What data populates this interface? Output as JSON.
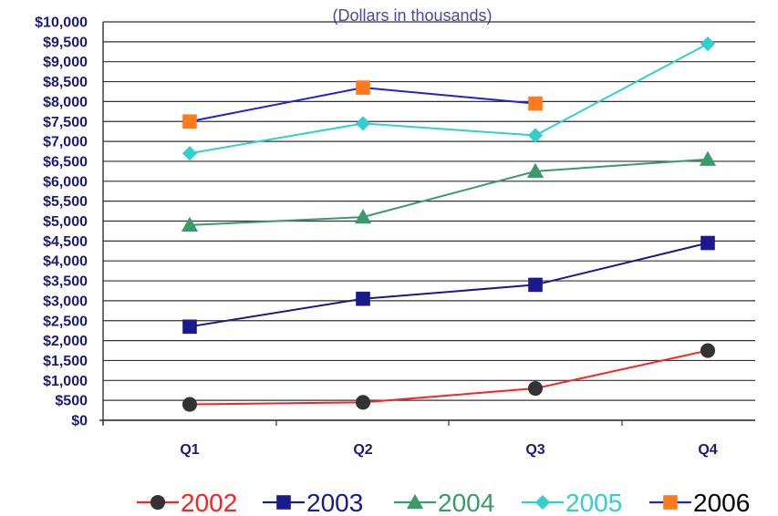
{
  "chart_data": {
    "type": "line",
    "subtitle": "(Dollars in thousands)",
    "categories": [
      "Q1",
      "Q2",
      "Q3",
      "Q4"
    ],
    "ylim": [
      0,
      10000
    ],
    "yticks": [
      0,
      500,
      1000,
      1500,
      2000,
      2500,
      3000,
      3500,
      4000,
      4500,
      5000,
      5500,
      6000,
      6500,
      7000,
      7500,
      8000,
      8500,
      9000,
      9500,
      10000
    ],
    "ytick_labels": [
      "$0",
      "$500",
      "$1,000",
      "$1,500",
      "$2,000",
      "$2,500",
      "$3,000",
      "$3,500",
      "$4,000",
      "$4,500",
      "$5,000",
      "$5,500",
      "$6,000",
      "$6,500",
      "$7,000",
      "$7,500",
      "$8,000",
      "$8,500",
      "$9,000",
      "$9,500",
      "$10,000"
    ],
    "grid": true,
    "legend_position": "bottom",
    "series": [
      {
        "name": "2002",
        "values": [
          400,
          450,
          800,
          1750
        ],
        "line_color": "#ff2020",
        "marker_color": "#333333",
        "marker": "circle"
      },
      {
        "name": "2003",
        "values": [
          2350,
          3050,
          3400,
          4450
        ],
        "line_color": "#1a1a8c",
        "marker_color": "#1a1a8c",
        "marker": "square"
      },
      {
        "name": "2004",
        "values": [
          4900,
          5100,
          6250,
          6550
        ],
        "line_color": "#3a9a6a",
        "marker_color": "#3a9a6a",
        "marker": "triangle"
      },
      {
        "name": "2005",
        "values": [
          6700,
          7450,
          7150,
          9450
        ],
        "line_color": "#30d0d0",
        "marker_color": "#30d0d0",
        "marker": "diamond"
      },
      {
        "name": "2006",
        "values": [
          7500,
          8350,
          7950,
          null
        ],
        "line_color": "#2020e0",
        "marker_color": "#ff7a1a",
        "marker": "square"
      }
    ]
  }
}
